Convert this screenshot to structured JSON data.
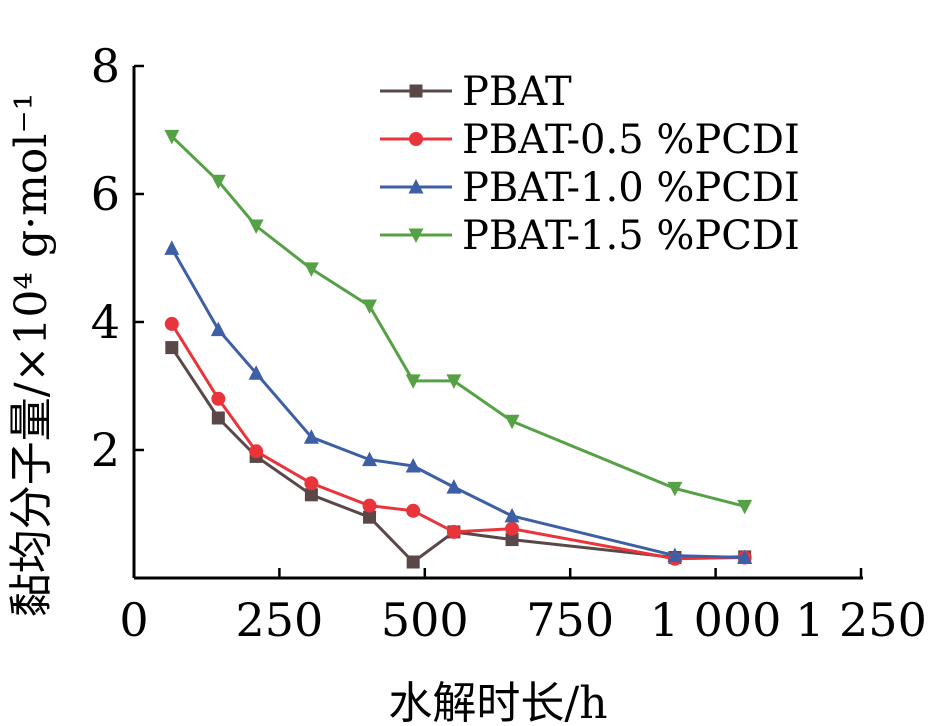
{
  "chart_data": {
    "type": "line",
    "xlabel": "水解时长/h",
    "ylabel": "黏均分子量/×10⁴ g·mol⁻¹",
    "xlim": [
      0,
      1250
    ],
    "ylim": [
      0,
      8
    ],
    "xticks": [
      0,
      250,
      500,
      750,
      1000,
      1250
    ],
    "xtick_labels": [
      "0",
      "250",
      "500",
      "750",
      "1 000",
      "1 250"
    ],
    "yticks": [
      2,
      4,
      6,
      8
    ],
    "ytick_labels": [
      "2",
      "4",
      "6",
      "8"
    ],
    "legend_position": "top-right",
    "series": [
      {
        "name": "PBAT",
        "color": "#5a4848",
        "marker": "square",
        "x": [
          65,
          145,
          210,
          305,
          405,
          480,
          550,
          650,
          930,
          1050
        ],
        "y": [
          3.6,
          2.5,
          1.9,
          1.3,
          0.95,
          0.25,
          0.72,
          0.6,
          0.32,
          0.33
        ]
      },
      {
        "name": "PBAT-0.5 %PCDI",
        "color": "#e8343a",
        "marker": "circle",
        "x": [
          65,
          145,
          210,
          305,
          405,
          480,
          550,
          650,
          930,
          1050
        ],
        "y": [
          3.97,
          2.8,
          1.98,
          1.48,
          1.13,
          1.05,
          0.72,
          0.77,
          0.3,
          0.32
        ]
      },
      {
        "name": "PBAT-1.0 %PCDI",
        "color": "#3d5fa6",
        "marker": "triangle-up",
        "x": [
          65,
          145,
          210,
          305,
          405,
          480,
          550,
          650,
          930,
          1050
        ],
        "y": [
          5.15,
          3.88,
          3.2,
          2.2,
          1.85,
          1.75,
          1.42,
          0.97,
          0.35,
          0.32
        ]
      },
      {
        "name": "PBAT-1.5 %PCDI",
        "color": "#56a145",
        "marker": "triangle-down",
        "x": [
          65,
          145,
          210,
          305,
          405,
          480,
          550,
          650,
          930,
          1050
        ],
        "y": [
          6.9,
          6.2,
          5.5,
          4.83,
          4.25,
          3.08,
          3.08,
          2.45,
          1.4,
          1.12
        ]
      }
    ]
  }
}
